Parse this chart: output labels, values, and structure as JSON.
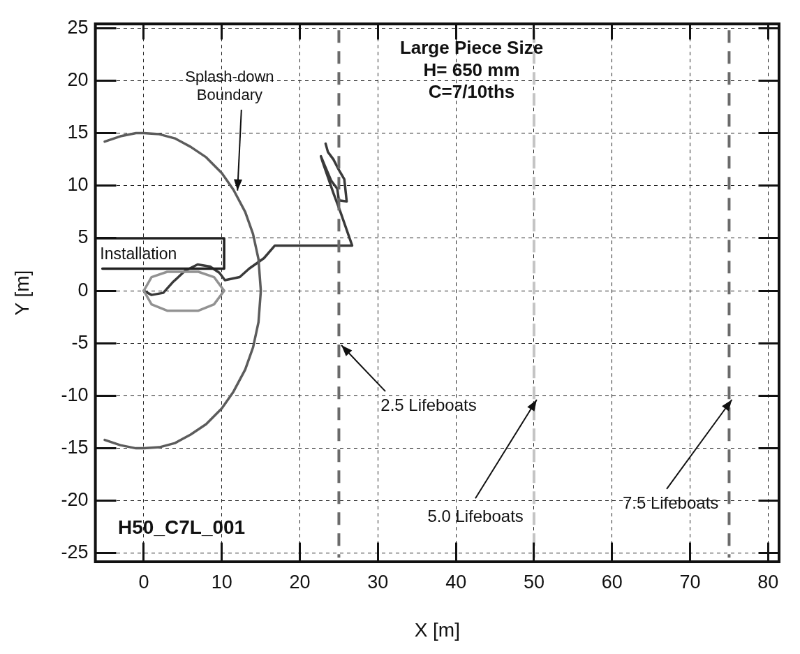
{
  "chart_data": {
    "type": "line",
    "xlabel": "X [m]",
    "ylabel": "Y [m]",
    "xlim": [
      -6.2,
      81.4
    ],
    "ylim": [
      -25.8,
      25.4
    ],
    "xticks": [
      0,
      10,
      20,
      30,
      40,
      50,
      60,
      70,
      80
    ],
    "yticks": [
      -25,
      -20,
      -15,
      -10,
      -5,
      0,
      5,
      10,
      15,
      20,
      25
    ],
    "grid": true,
    "legend": false,
    "marker": "none",
    "series": [
      {
        "color": "#5c5c5c",
        "x": [
          -5,
          -3,
          -1,
          0,
          2,
          4,
          6,
          8,
          10,
          11.5,
          13,
          14,
          14.7,
          15,
          14.7,
          14,
          13,
          11.5,
          10,
          8,
          6,
          4,
          2,
          0,
          -1,
          -3,
          -5
        ],
        "values": [
          14.2,
          14.7,
          15,
          15,
          14.9,
          14.5,
          13.7,
          12.7,
          11.2,
          9.6,
          7.5,
          5.4,
          3,
          0,
          -3,
          -5.4,
          -7.5,
          -9.6,
          -11.2,
          -12.7,
          -13.7,
          -14.5,
          -14.9,
          -15,
          -15,
          -14.7,
          -14.2
        ]
      },
      {
        "color": "#222222",
        "x": [
          -6,
          10.3,
          10.3,
          -5.3
        ],
        "values": [
          5,
          5,
          2.1,
          2.1
        ]
      },
      {
        "color": "#929292",
        "x": [
          0,
          1,
          3,
          7,
          9,
          10.3
        ],
        "values": [
          0,
          1.3,
          1.8,
          1.8,
          1.3,
          0
        ]
      },
      {
        "color": "#929292",
        "x": [
          0,
          1,
          3,
          7,
          9,
          10.3
        ],
        "values": [
          0,
          -1.3,
          -1.9,
          -1.9,
          -1.3,
          0
        ]
      },
      {
        "color": "#3a3a3a",
        "x": [
          0,
          1,
          2.5,
          3.7,
          5.3,
          6.9,
          8.5,
          9.7,
          10.4,
          12.3,
          13.5,
          15.4,
          16.8,
          20,
          24,
          26.7,
          25.2,
          24.3,
          23.6,
          22.9,
          22.7,
          23.2,
          24,
          24.8,
          25,
          26,
          25.7,
          25,
          24.3,
          23.6,
          23.3
        ],
        "values": [
          0,
          -0.4,
          -0.2,
          0.8,
          1.9,
          2.5,
          2.3,
          1.7,
          1,
          1.3,
          2.1,
          3.1,
          4.3,
          4.3,
          4.3,
          4.3,
          7.5,
          9.3,
          10.8,
          12.3,
          12.8,
          11.9,
          10.5,
          9.7,
          8.6,
          8.5,
          10.6,
          11.5,
          12.5,
          13.2,
          14
        ]
      }
    ],
    "ref_lines": [
      {
        "axis": "x",
        "value": 25,
        "label": "2.5 Lifeboats",
        "color": "#6a6a6a",
        "line_style": "dashed"
      },
      {
        "axis": "x",
        "value": 50,
        "label": "5.0 Lifeboats",
        "color": "#c4c4c4",
        "line_style": "dashed"
      },
      {
        "axis": "x",
        "value": 75,
        "label": "7.5 Lifeboats",
        "color": "#6a6a6a",
        "line_style": "dashed"
      }
    ],
    "annotations": [
      {
        "text": "Splash-down\nBoundary",
        "x": 12,
        "y": 9.5
      },
      "Installation",
      "Large Piece Size\nH= 650 mm\nC=7/10ths",
      "H50_C7L_001"
    ]
  }
}
